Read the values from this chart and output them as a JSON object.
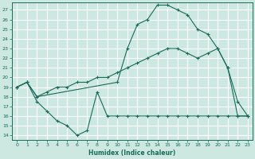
{
  "xlabel": "Humidex (Indice chaleur)",
  "bg_color": "#cce8e0",
  "grid_color": "#ffffff",
  "line_color": "#1a6b5a",
  "xlim": [
    -0.5,
    23.5
  ],
  "ylim": [
    13.5,
    27.8
  ],
  "yticks": [
    14,
    15,
    16,
    17,
    18,
    19,
    20,
    21,
    22,
    23,
    24,
    25,
    26,
    27
  ],
  "xticks": [
    0,
    1,
    2,
    3,
    4,
    5,
    6,
    7,
    8,
    9,
    10,
    11,
    12,
    13,
    14,
    15,
    16,
    17,
    18,
    19,
    20,
    21,
    22,
    23
  ],
  "line_bottom_x": [
    0,
    1,
    2,
    3,
    4,
    5,
    6,
    7,
    8,
    9,
    10,
    11,
    12,
    13,
    14,
    15,
    16,
    17,
    18,
    19,
    20,
    21,
    22,
    23
  ],
  "line_bottom_y": [
    19.0,
    19.5,
    17.5,
    16.5,
    15.5,
    15.0,
    14.0,
    14.5,
    18.5,
    16.0,
    16.0,
    16.0,
    16.0,
    16.0,
    16.0,
    16.0,
    16.0,
    16.0,
    16.0,
    16.0,
    16.0,
    16.0,
    16.0,
    16.0
  ],
  "line_mid_x": [
    0,
    1,
    2,
    3,
    4,
    5,
    6,
    7,
    8,
    9,
    10,
    11,
    12,
    13,
    14,
    15,
    16,
    17,
    18,
    19,
    20,
    21,
    22,
    23
  ],
  "line_mid_y": [
    19.0,
    19.5,
    18.0,
    18.5,
    19.0,
    19.0,
    19.5,
    19.5,
    20.0,
    20.0,
    20.5,
    21.0,
    21.5,
    22.0,
    22.5,
    23.0,
    23.0,
    22.5,
    22.0,
    22.5,
    23.0,
    21.0,
    16.0,
    16.0
  ],
  "line_top_x": [
    0,
    1,
    2,
    10,
    11,
    12,
    13,
    14,
    15,
    16,
    17,
    18,
    19,
    20,
    21,
    22,
    23
  ],
  "line_top_y": [
    19.0,
    19.5,
    18.0,
    19.5,
    23.0,
    25.5,
    26.0,
    27.5,
    27.5,
    27.0,
    26.5,
    25.0,
    24.5,
    23.0,
    21.0,
    17.5,
    16.0
  ]
}
